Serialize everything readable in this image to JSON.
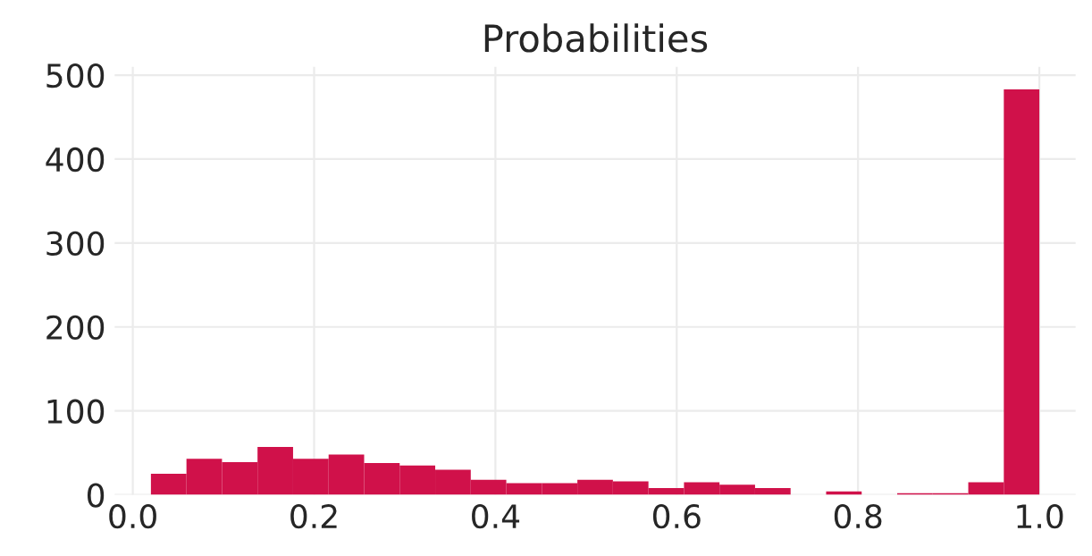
{
  "chart_data": {
    "type": "histogram",
    "title": "Probabilities",
    "bins": [
      0.02,
      0.0592,
      0.0984,
      0.1376,
      0.1768,
      0.216,
      0.2552,
      0.2944,
      0.3336,
      0.3728,
      0.412,
      0.4512,
      0.4904,
      0.5296,
      0.5688,
      0.608,
      0.6472,
      0.6864,
      0.7256,
      0.7648,
      0.804,
      0.8432,
      0.8824,
      0.9216,
      0.9608,
      1.0
    ],
    "values": [
      25,
      43,
      39,
      57,
      43,
      48,
      38,
      35,
      30,
      18,
      14,
      14,
      18,
      16,
      8,
      15,
      12,
      8,
      0,
      4,
      0,
      2,
      2,
      15,
      483
    ],
    "color": "#d0114a",
    "xlim": [
      -0.02,
      1.04
    ],
    "ylim": [
      0,
      510
    ],
    "xticks": [
      {
        "value": 0.0,
        "label": "0.0"
      },
      {
        "value": 0.2,
        "label": "0.2"
      },
      {
        "value": 0.4,
        "label": "0.4"
      },
      {
        "value": 0.6,
        "label": "0.6"
      },
      {
        "value": 0.8,
        "label": "0.8"
      },
      {
        "value": 1.0,
        "label": "1.0"
      }
    ],
    "yticks": [
      0,
      100,
      200,
      300,
      400,
      500
    ],
    "grid": true
  }
}
